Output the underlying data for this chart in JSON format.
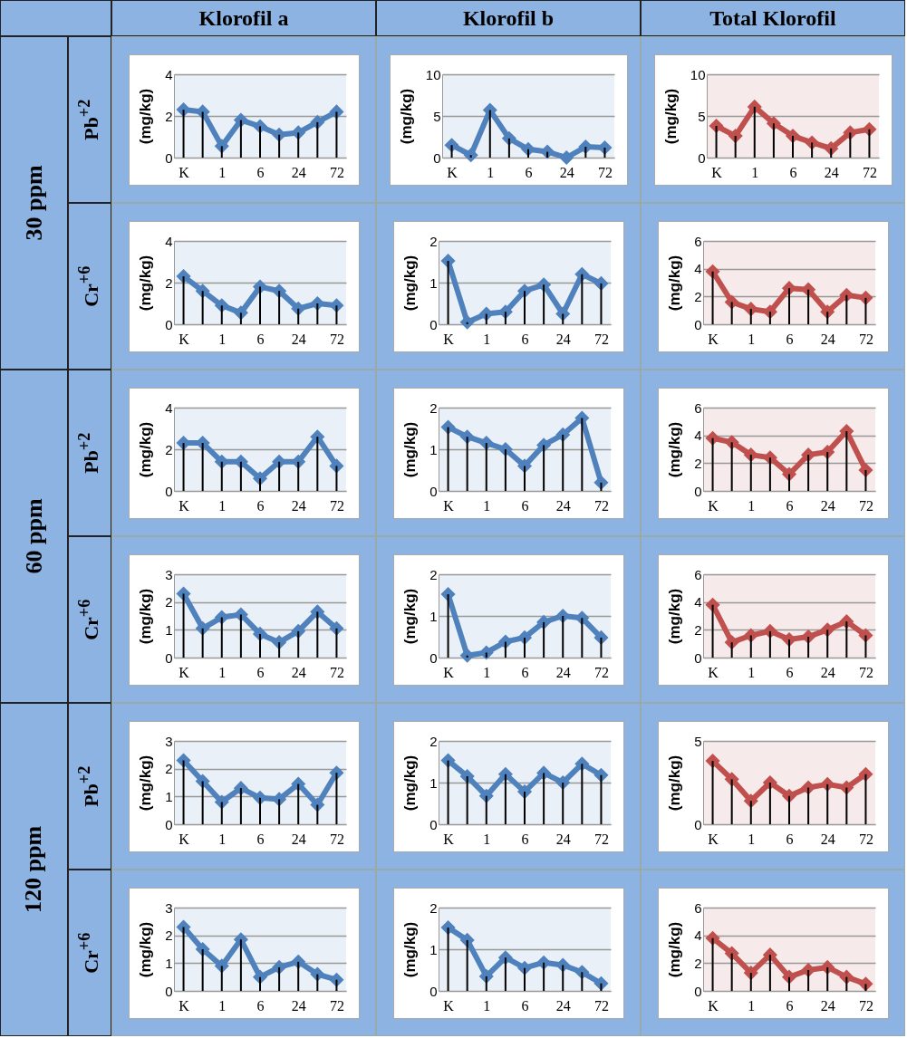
{
  "chart_data": [
    {
      "type": "line",
      "title": "Klorofil a",
      "annotations": [
        "30 ppm",
        "Pb$^{+2}$"
      ],
      "ylabel": "(mg/kg)",
      "categories": [
        "K",
        null,
        "1",
        null,
        "6",
        null,
        "24",
        null,
        "72"
      ],
      "series": [
        {
          "color": "#4f81bd",
          "values": [
            2.3,
            2.2,
            0.55,
            1.8,
            1.5,
            1.1,
            1.2,
            1.7,
            2.2
          ]
        },
        {
          "type": "bar",
          "color": "#000000",
          "values": [
            2.3,
            2.2,
            0.55,
            1.8,
            1.5,
            1.1,
            1.2,
            1.7,
            2.2
          ]
        }
      ],
      "ylim": [
        0,
        4
      ],
      "yticks": [
        0,
        2,
        4
      ],
      "grid": "y",
      "marker": "diamond"
    },
    {
      "type": "line",
      "title": "Klorofil b",
      "ylabel": "(mg/kg)",
      "categories": [
        "K",
        null,
        "1",
        null,
        "6",
        null,
        "24",
        null,
        "72"
      ],
      "series": [
        {
          "color": "#4f81bd",
          "values": [
            1.5,
            0.3,
            5.7,
            2.3,
            1.0,
            0.7,
            0.0,
            1.3,
            1.2
          ]
        },
        {
          "type": "bar",
          "color": "#000000",
          "values": [
            1.5,
            0.3,
            5.7,
            2.3,
            1.0,
            0.7,
            0.0,
            1.3,
            1.2
          ]
        }
      ],
      "ylim": [
        0,
        10
      ],
      "yticks": [
        0,
        5,
        10
      ],
      "grid": "y",
      "marker": "diamond"
    },
    {
      "type": "line",
      "title": "Total Klorofil",
      "ylabel": "(mg/kg)",
      "categories": [
        "K",
        null,
        "1",
        null,
        "6",
        null,
        "24",
        null,
        "72"
      ],
      "series": [
        {
          "color": "#c0504d",
          "values": [
            3.8,
            2.6,
            6.1,
            4.1,
            2.6,
            1.8,
            1.1,
            3.0,
            3.4
          ]
        },
        {
          "type": "bar",
          "color": "#000000",
          "values": [
            3.8,
            2.6,
            6.1,
            4.1,
            2.6,
            1.8,
            1.1,
            3.0,
            3.4
          ]
        }
      ],
      "ylim": [
        0,
        10
      ],
      "yticks": [
        0,
        5,
        10
      ],
      "grid": "y",
      "marker": "diamond"
    },
    {
      "type": "line",
      "annotations": [
        "Cr$^{+6}$"
      ],
      "ylabel": "(mg/kg)",
      "categories": [
        "K",
        null,
        "1",
        null,
        "6",
        null,
        "24",
        null,
        "72"
      ],
      "series": [
        {
          "color": "#4f81bd",
          "values": [
            2.3,
            1.6,
            0.9,
            0.55,
            1.8,
            1.6,
            0.75,
            1.0,
            0.9
          ]
        },
        {
          "type": "bar",
          "color": "#000000",
          "values": [
            2.3,
            1.6,
            0.9,
            0.55,
            1.8,
            1.6,
            0.75,
            1.0,
            0.9
          ]
        }
      ],
      "ylim": [
        0,
        4
      ],
      "yticks": [
        0,
        2,
        4
      ],
      "grid": "y",
      "marker": "diamond"
    },
    {
      "type": "line",
      "ylabel": "(mg/kg)",
      "categories": [
        "K",
        null,
        "1",
        null,
        "6",
        null,
        "24",
        null,
        "72"
      ],
      "series": [
        {
          "color": "#4f81bd",
          "values": [
            1.52,
            0.05,
            0.25,
            0.3,
            0.8,
            0.95,
            0.25,
            1.2,
            0.98
          ]
        },
        {
          "type": "bar",
          "color": "#000000",
          "values": [
            1.52,
            0.05,
            0.25,
            0.3,
            0.8,
            0.95,
            0.25,
            1.2,
            0.98
          ]
        }
      ],
      "ylim": [
        0,
        2
      ],
      "yticks": [
        0,
        1,
        2
      ],
      "grid": "y",
      "marker": "diamond"
    },
    {
      "type": "line",
      "ylabel": "(mg/kg)",
      "categories": [
        "K",
        null,
        "1",
        null,
        "6",
        null,
        "24",
        null,
        "72"
      ],
      "series": [
        {
          "color": "#c0504d",
          "values": [
            3.8,
            1.6,
            1.1,
            0.9,
            2.6,
            2.5,
            0.9,
            2.1,
            1.9
          ]
        },
        {
          "type": "bar",
          "color": "#000000",
          "values": [
            3.8,
            1.6,
            1.1,
            0.9,
            2.6,
            2.5,
            0.9,
            2.1,
            1.9
          ]
        }
      ],
      "ylim": [
        0,
        6
      ],
      "yticks": [
        0,
        2,
        4,
        6
      ],
      "grid": "y",
      "marker": "diamond"
    },
    {
      "type": "line",
      "annotations": [
        "60 ppm",
        "Pb$^{+2}$"
      ],
      "ylabel": "(mg/kg)",
      "categories": [
        "K",
        null,
        "1",
        null,
        "6",
        null,
        "24",
        null,
        "72"
      ],
      "series": [
        {
          "color": "#4f81bd",
          "values": [
            2.3,
            2.3,
            1.4,
            1.4,
            0.6,
            1.4,
            1.4,
            2.6,
            1.2
          ]
        },
        {
          "type": "bar",
          "color": "#000000",
          "values": [
            2.3,
            2.3,
            1.4,
            1.4,
            0.6,
            1.4,
            1.4,
            2.6,
            1.2
          ]
        }
      ],
      "ylim": [
        0,
        4
      ],
      "yticks": [
        0,
        2,
        4
      ],
      "grid": "y",
      "marker": "diamond"
    },
    {
      "type": "line",
      "ylabel": "(mg/kg)",
      "categories": [
        "K",
        null,
        "1",
        null,
        "6",
        null,
        "24",
        null,
        "72"
      ],
      "series": [
        {
          "color": "#4f81bd",
          "values": [
            1.53,
            1.3,
            1.15,
            1.0,
            0.6,
            1.1,
            1.35,
            1.75,
            0.2
          ]
        },
        {
          "type": "bar",
          "color": "#000000",
          "values": [
            1.53,
            1.3,
            1.15,
            1.0,
            0.6,
            1.1,
            1.35,
            1.75,
            0.2
          ]
        }
      ],
      "ylim": [
        0,
        2
      ],
      "yticks": [
        0,
        1,
        2
      ],
      "grid": "y",
      "marker": "diamond"
    },
    {
      "type": "line",
      "ylabel": "(mg/kg)",
      "categories": [
        "K",
        null,
        "1",
        null,
        "6",
        null,
        "24",
        null,
        "72"
      ],
      "series": [
        {
          "color": "#c0504d",
          "values": [
            3.8,
            3.5,
            2.6,
            2.4,
            1.2,
            2.6,
            2.8,
            4.3,
            1.5
          ]
        },
        {
          "type": "bar",
          "color": "#000000",
          "values": [
            3.8,
            3.5,
            2.6,
            2.4,
            1.2,
            2.6,
            2.8,
            4.3,
            1.5
          ]
        }
      ],
      "ylim": [
        0,
        6
      ],
      "yticks": [
        0,
        2,
        4,
        6
      ],
      "grid": "y",
      "marker": "diamond"
    },
    {
      "type": "line",
      "annotations": [
        "Cr$^{+6}$"
      ],
      "ylabel": "(mg/kg)",
      "categories": [
        "K",
        null,
        "1",
        null,
        "6",
        null,
        "24",
        null,
        "72"
      ],
      "series": [
        {
          "color": "#4f81bd",
          "values": [
            2.3,
            1.05,
            1.45,
            1.55,
            0.85,
            0.55,
            0.95,
            1.65,
            1.05
          ]
        },
        {
          "type": "bar",
          "color": "#000000",
          "values": [
            2.3,
            1.05,
            1.45,
            1.55,
            0.85,
            0.55,
            0.95,
            1.65,
            1.05
          ]
        }
      ],
      "ylim": [
        0,
        3
      ],
      "yticks": [
        0,
        1,
        2,
        3
      ],
      "grid": "y",
      "marker": "diamond"
    },
    {
      "type": "line",
      "ylabel": "(mg/kg)",
      "categories": [
        "K",
        null,
        "1",
        null,
        "6",
        null,
        "24",
        null,
        "72"
      ],
      "series": [
        {
          "color": "#4f81bd",
          "values": [
            1.52,
            0.05,
            0.12,
            0.38,
            0.48,
            0.85,
            1.0,
            0.95,
            0.48
          ]
        },
        {
          "type": "bar",
          "color": "#000000",
          "values": [
            1.52,
            0.05,
            0.12,
            0.38,
            0.48,
            0.85,
            1.0,
            0.95,
            0.48
          ]
        }
      ],
      "ylim": [
        0,
        2
      ],
      "yticks": [
        0,
        1,
        2
      ],
      "grid": "y",
      "marker": "diamond"
    },
    {
      "type": "line",
      "ylabel": "(mg/kg)",
      "categories": [
        "K",
        null,
        "1",
        null,
        "6",
        null,
        "24",
        null,
        "72"
      ],
      "series": [
        {
          "color": "#c0504d",
          "values": [
            3.8,
            1.1,
            1.6,
            1.9,
            1.3,
            1.5,
            2.0,
            2.6,
            1.6
          ]
        },
        {
          "type": "bar",
          "color": "#000000",
          "values": [
            3.8,
            1.1,
            1.6,
            1.9,
            1.3,
            1.5,
            2.0,
            2.6,
            1.6
          ]
        }
      ],
      "ylim": [
        0,
        6
      ],
      "yticks": [
        0,
        2,
        4,
        6
      ],
      "grid": "y",
      "marker": "diamond"
    },
    {
      "type": "line",
      "annotations": [
        "120 ppm",
        "Pb$^{+2}$"
      ],
      "ylabel": "(mg/kg)",
      "categories": [
        "K",
        null,
        "1",
        null,
        "6",
        null,
        "24",
        null,
        "72"
      ],
      "series": [
        {
          "color": "#4f81bd",
          "values": [
            2.3,
            1.55,
            0.8,
            1.3,
            0.95,
            0.9,
            1.45,
            0.7,
            1.85
          ]
        },
        {
          "type": "bar",
          "color": "#000000",
          "values": [
            2.3,
            1.55,
            0.8,
            1.3,
            0.95,
            0.9,
            1.45,
            0.7,
            1.85
          ]
        }
      ],
      "ylim": [
        0,
        3
      ],
      "yticks": [
        0,
        1,
        2,
        3
      ],
      "grid": "y",
      "marker": "diamond"
    },
    {
      "type": "line",
      "ylabel": "(mg/kg)",
      "categories": [
        "K",
        null,
        "1",
        null,
        "6",
        null,
        "24",
        null,
        "72"
      ],
      "series": [
        {
          "color": "#4f81bd",
          "values": [
            1.53,
            1.15,
            0.68,
            1.2,
            0.78,
            1.23,
            1.0,
            1.45,
            1.18
          ]
        },
        {
          "type": "bar",
          "color": "#000000",
          "values": [
            1.53,
            1.15,
            0.68,
            1.2,
            0.78,
            1.23,
            1.0,
            1.45,
            1.18
          ]
        }
      ],
      "ylim": [
        0,
        2
      ],
      "yticks": [
        0,
        1,
        2
      ],
      "grid": "y",
      "marker": "diamond"
    },
    {
      "type": "line",
      "ylabel": "(mg/kg)",
      "categories": [
        "K",
        null,
        "1",
        null,
        "6",
        null,
        "24",
        null,
        "72"
      ],
      "series": [
        {
          "color": "#c0504d",
          "values": [
            3.8,
            2.7,
            1.4,
            2.5,
            1.7,
            2.2,
            2.4,
            2.2,
            3.0
          ]
        },
        {
          "type": "bar",
          "color": "#000000",
          "values": [
            3.8,
            2.7,
            1.4,
            2.5,
            1.7,
            2.2,
            2.4,
            2.2,
            3.0
          ]
        }
      ],
      "ylim": [
        0,
        5
      ],
      "yticks": [
        0,
        5
      ],
      "grid": "y",
      "marker": "diamond"
    },
    {
      "type": "line",
      "annotations": [
        "Cr$^{+6}$"
      ],
      "ylabel": "(mg/kg)",
      "categories": [
        "K",
        null,
        "1",
        null,
        "6",
        null,
        "24",
        null,
        "72"
      ],
      "series": [
        {
          "color": "#4f81bd",
          "values": [
            2.3,
            1.5,
            0.9,
            1.85,
            0.5,
            0.85,
            1.05,
            0.6,
            0.4
          ]
        },
        {
          "type": "bar",
          "color": "#000000",
          "values": [
            2.3,
            1.5,
            0.9,
            1.85,
            0.5,
            0.85,
            1.05,
            0.6,
            0.4
          ]
        }
      ],
      "ylim": [
        0,
        3
      ],
      "yticks": [
        0,
        1,
        2,
        3
      ],
      "grid": "y",
      "marker": "diamond"
    },
    {
      "type": "line",
      "ylabel": "(mg/kg)",
      "categories": [
        "K",
        null,
        "1",
        null,
        "6",
        null,
        "24",
        null,
        "72"
      ],
      "series": [
        {
          "color": "#4f81bd",
          "values": [
            1.52,
            1.22,
            0.35,
            0.8,
            0.55,
            0.68,
            0.62,
            0.45,
            0.18
          ]
        },
        {
          "type": "bar",
          "color": "#000000",
          "values": [
            1.52,
            1.22,
            0.35,
            0.8,
            0.55,
            0.68,
            0.62,
            0.45,
            0.18
          ]
        }
      ],
      "ylim": [
        0,
        2
      ],
      "yticks": [
        0,
        1,
        2
      ],
      "grid": "y",
      "marker": "diamond"
    },
    {
      "type": "line",
      "ylabel": "(mg/kg)",
      "categories": [
        "K",
        null,
        "1",
        null,
        "6",
        null,
        "24",
        null,
        "72"
      ],
      "series": [
        {
          "color": "#c0504d",
          "values": [
            3.8,
            2.7,
            1.3,
            2.6,
            1.0,
            1.5,
            1.7,
            1.0,
            0.5
          ]
        },
        {
          "type": "bar",
          "color": "#000000",
          "values": [
            3.8,
            2.7,
            1.3,
            2.6,
            1.0,
            1.5,
            1.7,
            1.0,
            0.5
          ]
        }
      ],
      "ylim": [
        0,
        6
      ],
      "yticks": [
        0,
        2,
        4,
        6
      ],
      "grid": "y",
      "marker": "diamond"
    }
  ]
}
